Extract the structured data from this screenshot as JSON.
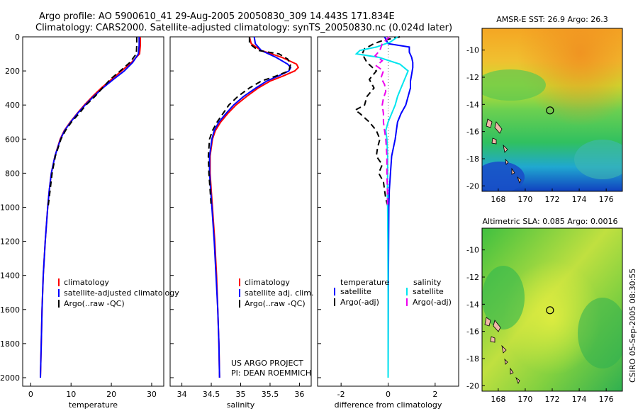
{
  "header": {
    "title_line1": "Argo profile: AO 5900610_41 29-Aug-2005 20050830_309 14.443S 171.834E",
    "title_line2": "Climatology: CARS2000. Satellite-adjusted climatology: synTS_20050830.nc (0.024d later)"
  },
  "colors": {
    "climatology": "#ff0000",
    "satellite": "#0000ff",
    "argo": "#000000",
    "sal_satellite": "#00e5ee",
    "sal_argo": "#ee00ee"
  },
  "chart_data": [
    {
      "id": "temperature",
      "type": "line",
      "xlabel": "temperature",
      "xlim": [
        -2,
        33
      ],
      "ylim": [
        0,
        2050
      ],
      "y_reversed": true,
      "xticks": [
        0,
        10,
        20,
        30
      ],
      "xtick_labels": [
        "0",
        "10",
        "20",
        "30"
      ],
      "yticks": [
        0,
        200,
        400,
        600,
        800,
        1000,
        1200,
        1400,
        1600,
        1800,
        2000
      ],
      "ytick_labels": [
        "0",
        "200",
        "400",
        "600",
        "800",
        "1000",
        "1200",
        "1400",
        "1600",
        "1800",
        "2000"
      ],
      "legend": [
        "climatology",
        "satellite-adjusted climatology",
        "Argo(..raw -QC)"
      ],
      "series": [
        {
          "name": "climatology",
          "color": "#ff0000",
          "dash": "",
          "depth": [
            0,
            50,
            100,
            150,
            200,
            250,
            300,
            350,
            400,
            450,
            500,
            550,
            600,
            700,
            800,
            900,
            1000,
            1200,
            1400,
            1600,
            1800,
            2000
          ],
          "values": [
            27.2,
            27.2,
            27.0,
            25.0,
            22.5,
            20.0,
            17.5,
            15.3,
            13.3,
            11.5,
            9.8,
            8.3,
            7.3,
            6.0,
            5.1,
            4.6,
            4.2,
            3.6,
            3.1,
            2.8,
            2.6,
            2.4
          ]
        },
        {
          "name": "satellite-adjusted climatology",
          "color": "#0000ff",
          "dash": "",
          "depth": [
            0,
            50,
            100,
            150,
            200,
            250,
            300,
            350,
            400,
            450,
            500,
            550,
            600,
            700,
            800,
            900,
            1000,
            1200,
            1400,
            1600,
            1800,
            2000
          ],
          "values": [
            26.9,
            26.9,
            26.7,
            25.3,
            23.2,
            20.5,
            17.9,
            15.6,
            13.5,
            11.6,
            9.9,
            8.4,
            7.4,
            6.0,
            5.1,
            4.6,
            4.2,
            3.6,
            3.1,
            2.8,
            2.6,
            2.4
          ]
        },
        {
          "name": "Argo(..raw -QC)",
          "color": "#000000",
          "dash": "8,5",
          "depth": [
            0,
            50,
            100,
            150,
            200,
            250,
            300,
            350,
            400,
            450,
            500,
            550,
            600,
            700,
            800,
            900,
            1000
          ],
          "values": [
            26.3,
            26.3,
            26.2,
            24.6,
            22.2,
            19.7,
            17.8,
            15.9,
            13.7,
            12.0,
            10.1,
            8.6,
            7.5,
            6.1,
            5.3,
            4.8,
            4.3
          ]
        }
      ]
    },
    {
      "id": "salinity",
      "type": "line",
      "xlabel": "salinity",
      "xlim": [
        33.8,
        36.2
      ],
      "ylim": [
        0,
        2050
      ],
      "y_reversed": true,
      "xticks": [
        34,
        34.5,
        35,
        35.5,
        36
      ],
      "xtick_labels": [
        "34",
        "34.5",
        "35",
        "35.5",
        "36"
      ],
      "legend": [
        "climatology",
        "satellite adj. clim.",
        "Argo(..raw -QC)"
      ],
      "annotations": [
        "US ARGO PROJECT",
        "PI: DEAN ROEMMICH"
      ],
      "series": [
        {
          "name": "climatology",
          "color": "#ff0000",
          "dash": "",
          "depth": [
            0,
            40,
            80,
            120,
            160,
            180,
            200,
            230,
            260,
            300,
            350,
            400,
            450,
            500,
            550,
            600,
            700,
            800,
            900,
            1000,
            1200,
            1400,
            1600,
            1800,
            2000
          ],
          "values": [
            35.15,
            35.18,
            35.35,
            35.7,
            35.95,
            35.98,
            35.92,
            35.72,
            35.5,
            35.3,
            35.1,
            34.92,
            34.78,
            34.66,
            34.57,
            34.52,
            34.48,
            34.48,
            34.5,
            34.52,
            34.56,
            34.59,
            34.61,
            34.63,
            34.64
          ]
        },
        {
          "name": "satellite adj. clim.",
          "color": "#0000ff",
          "dash": "",
          "depth": [
            0,
            40,
            80,
            120,
            160,
            180,
            200,
            230,
            260,
            300,
            350,
            400,
            450,
            500,
            550,
            600,
            700,
            800,
            900,
            1000,
            1200,
            1400,
            1600,
            1800,
            2000
          ],
          "values": [
            35.23,
            35.25,
            35.35,
            35.6,
            35.8,
            35.85,
            35.82,
            35.64,
            35.44,
            35.26,
            35.05,
            34.88,
            34.75,
            34.63,
            34.55,
            34.51,
            34.47,
            34.47,
            34.49,
            34.51,
            34.55,
            34.58,
            34.61,
            34.63,
            34.64
          ]
        },
        {
          "name": "Argo(..raw -QC)",
          "color": "#000000",
          "dash": "8,5",
          "depth": [
            0,
            40,
            80,
            100,
            130,
            160,
            200,
            230,
            260,
            300,
            350,
            400,
            450,
            500,
            550,
            600,
            700,
            800,
            900,
            1000
          ],
          "values": [
            35.15,
            35.15,
            35.3,
            35.65,
            35.8,
            35.85,
            35.82,
            35.6,
            35.35,
            35.15,
            34.95,
            34.8,
            34.7,
            34.6,
            34.52,
            34.47,
            34.45,
            34.46,
            34.48,
            34.5
          ]
        }
      ]
    },
    {
      "id": "difference",
      "type": "line",
      "xlabel": "difference from climatology",
      "xlim": [
        -3,
        3
      ],
      "ylim": [
        0,
        2050
      ],
      "y_reversed": true,
      "xticks": [
        -2,
        0,
        2
      ],
      "xtick_labels": [
        "-2",
        "0",
        "2"
      ],
      "legend_headers": [
        "temperature",
        "salinity"
      ],
      "legend": [
        "satellite",
        "Argo(-adj)",
        "satellite",
        "Argo(-adj)"
      ],
      "series": [
        {
          "name": "temperature satellite",
          "color": "#0000ff",
          "dash": "",
          "depth": [
            0,
            40,
            60,
            90,
            120,
            150,
            180,
            220,
            260,
            300,
            350,
            400,
            450,
            500,
            550,
            600,
            700,
            800,
            900,
            1000,
            1200,
            1500,
            2000
          ],
          "values": [
            -0.15,
            0.0,
            0.9,
            0.9,
            1.0,
            1.05,
            1.05,
            1.0,
            0.95,
            0.95,
            0.85,
            0.75,
            0.55,
            0.4,
            0.35,
            0.3,
            0.15,
            0.1,
            0.05,
            0.03,
            0.02,
            0.01,
            0.0
          ]
        },
        {
          "name": "temperature Argo(-adj)",
          "color": "#000000",
          "dash": "8,5",
          "depth": [
            0,
            20,
            40,
            70,
            100,
            150,
            200,
            250,
            300,
            350,
            400,
            430,
            450,
            500,
            550,
            600,
            650,
            700,
            750,
            800,
            850,
            900,
            950,
            1000
          ],
          "values": [
            0.5,
            -0.2,
            -0.6,
            -1.0,
            -1.1,
            -0.9,
            -0.5,
            -0.8,
            -0.6,
            -0.9,
            -1.0,
            -1.4,
            -1.2,
            -0.8,
            -0.5,
            -0.35,
            -0.45,
            -0.5,
            -0.25,
            -0.4,
            -0.2,
            -0.15,
            -0.1,
            0.0
          ]
        },
        {
          "name": "salinity satellite",
          "color": "#00e5ee",
          "dash": "",
          "depth": [
            0,
            30,
            60,
            80,
            100,
            120,
            160,
            200,
            250,
            300,
            350,
            400,
            450,
            500,
            550,
            600,
            700,
            800,
            900,
            1000,
            1200,
            1500,
            2000
          ],
          "values": [
            0.4,
            0.1,
            -0.5,
            -1.2,
            -1.35,
            -0.4,
            0.5,
            0.85,
            0.7,
            0.55,
            0.4,
            0.3,
            0.15,
            0.0,
            -0.1,
            -0.05,
            -0.02,
            -0.02,
            -0.03,
            -0.02,
            -0.01,
            0.0,
            0.0
          ]
        },
        {
          "name": "salinity Argo(-adj)",
          "color": "#ee00ee",
          "dash": "9,5",
          "depth": [
            0,
            40,
            80,
            110,
            140,
            170,
            200,
            240,
            280,
            320,
            360,
            400,
            450,
            500,
            550,
            600,
            700,
            800,
            900,
            1000
          ],
          "values": [
            0.05,
            -0.25,
            -0.35,
            -0.55,
            -0.25,
            -0.5,
            -0.2,
            -0.3,
            -0.15,
            -0.1,
            -0.2,
            -0.25,
            -0.2,
            -0.2,
            -0.15,
            -0.1,
            -0.05,
            -0.05,
            -0.03,
            -0.02
          ]
        }
      ]
    },
    {
      "id": "sst_map",
      "type": "heatmap",
      "title": "AMSR-E SST: 26.9 Argo: 26.3",
      "xlim": [
        166.8,
        177.2
      ],
      "ylim": [
        -20.4,
        -8.4
      ],
      "xticks": [
        168,
        170,
        172,
        174,
        176
      ],
      "xtick_labels": [
        "168",
        "170",
        "172",
        "174",
        "176"
      ],
      "yticks": [
        -10,
        -12,
        -14,
        -16,
        -18,
        -20
      ],
      "ytick_labels": [
        "-10",
        "-12",
        "-14",
        "-16",
        "-18",
        "-20"
      ],
      "marker": {
        "lon": 171.834,
        "lat": -14.443
      }
    },
    {
      "id": "sla_map",
      "type": "heatmap",
      "title": "Altimetric SLA: 0.085 Argo: 0.0016",
      "xlim": [
        166.8,
        177.2
      ],
      "ylim": [
        -20.4,
        -8.4
      ],
      "xticks": [
        168,
        170,
        172,
        174,
        176
      ],
      "xtick_labels": [
        "168",
        "170",
        "172",
        "174",
        "176"
      ],
      "yticks": [
        -10,
        -12,
        -14,
        -16,
        -18,
        -20
      ],
      "ytick_labels": [
        "-10",
        "-12",
        "-14",
        "-16",
        "-18",
        "-20"
      ],
      "marker": {
        "lon": 171.834,
        "lat": -14.443
      }
    }
  ],
  "side_label": "CSIRO 05-Sep-2005 08:30:55"
}
